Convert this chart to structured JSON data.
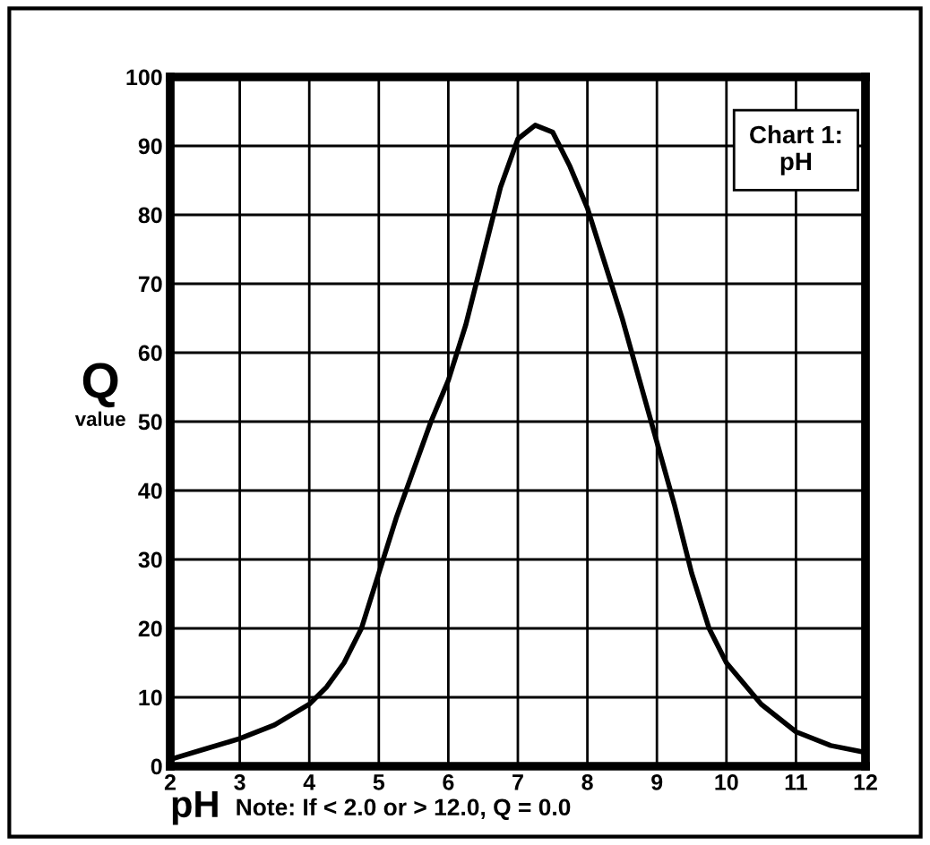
{
  "chart_data": {
    "type": "line",
    "title": "Chart 1:\npH",
    "xlabel": "pH",
    "ylabel": "Q",
    "annotations": [
      "value",
      "Note: If < 2.0 or > 12.0, Q = 0.0"
    ],
    "x": [
      2,
      2.5,
      3,
      3.5,
      4,
      4.25,
      4.5,
      4.75,
      5,
      5.25,
      5.5,
      5.75,
      6,
      6.25,
      6.5,
      6.75,
      7,
      7.25,
      7.5,
      7.75,
      8,
      8.25,
      8.5,
      8.75,
      9,
      9.25,
      9.5,
      9.75,
      10,
      10.5,
      11,
      11.5,
      12
    ],
    "series": [
      {
        "color": "#000000",
        "values": [
          1,
          2.5,
          4,
          6,
          9,
          11.5,
          15,
          20,
          28,
          36,
          43,
          50,
          56,
          64,
          74,
          84,
          91,
          93,
          92,
          87,
          81,
          73,
          65,
          56,
          47,
          38,
          28,
          20,
          15,
          9,
          5,
          3,
          2
        ]
      }
    ],
    "xlim": [
      2,
      12
    ],
    "ylim": [
      0,
      100
    ],
    "xticks": [
      2,
      3,
      4,
      5,
      6,
      7,
      8,
      9,
      10,
      11,
      12
    ],
    "yticks": [
      0,
      10,
      20,
      30,
      40,
      50,
      60,
      70,
      80,
      90,
      100
    ],
    "grid": true,
    "legend": false,
    "marker": "none",
    "line_style": "solid"
  }
}
